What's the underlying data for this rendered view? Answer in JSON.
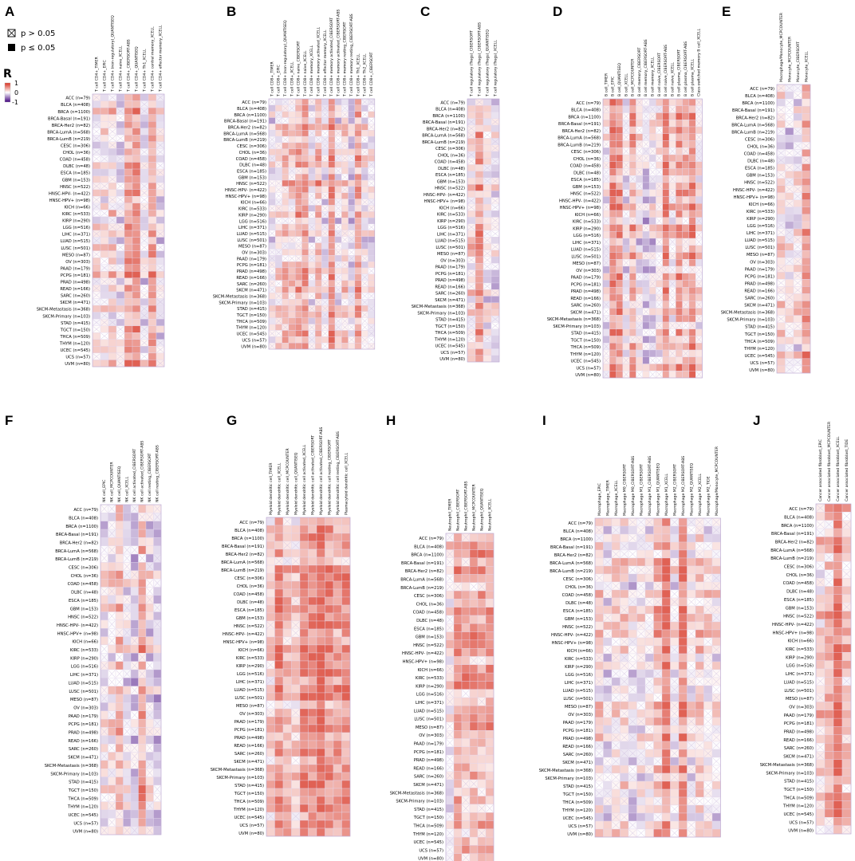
{
  "figure": {
    "description_free": true,
    "legend": {
      "ns_label": "p > 0.05",
      "sig_label": "p ≤ 0.05",
      "r_title": "R",
      "r_ticks": [
        "1",
        "0",
        "-1"
      ],
      "colors": {
        "positive": "#d7301f",
        "neutral": "#ffffff",
        "negative": "#3f007d",
        "grid": "#d8c8e8"
      }
    }
  },
  "chart_data": {
    "type": "heatmap",
    "value_range": [
      -1,
      1
    ],
    "cancers": [
      "ACC (n=79)",
      "BLCA (n=408)",
      "BRCA (n=1100)",
      "BRCA-Basal (n=191)",
      "BRCA-Her2 (n=82)",
      "BRCA-LumA (n=568)",
      "BRCA-LumB (n=219)",
      "CESC (n=306)",
      "CHOL (n=36)",
      "COAD (n=458)",
      "DLBC (n=48)",
      "ESCA (n=185)",
      "GBM (n=153)",
      "HNSC (n=522)",
      "HNSC-HPV- (n=422)",
      "HNSC-HPV+ (n=98)",
      "KICH (n=66)",
      "KIRC (n=533)",
      "KIRP (n=290)",
      "LGG (n=516)",
      "LIHC (n=371)",
      "LUAD (n=515)",
      "LUSC (n=501)",
      "MESO (n=87)",
      "OV (n=303)",
      "PAAD (n=179)",
      "PCPG (n=181)",
      "PRAD (n=498)",
      "READ (n=166)",
      "SARC (n=260)",
      "SKCM (n=471)",
      "SKCM-Metastasis (n=368)",
      "SKCM-Primary (n=103)",
      "STAD (n=415)",
      "TGCT (n=150)",
      "THCA (n=509)",
      "THYM (n=120)",
      "UCEC (n=545)",
      "UCS (n=57)",
      "UVM (n=80)"
    ],
    "panels": [
      {
        "letter": "A",
        "seed": 11,
        "bias": 0.3,
        "columns": [
          "T cell CD4+_TIMER",
          "T cell CD4+_EPIC",
          "T cell CD4+ (non-regulatory)_QUANTISEQ",
          "T cell CD4+ naive_XCELL",
          "T cell CD4+_CIBERSORT-ABS",
          "T cell CD4+_QUANTISEQ",
          "T cell CD4+ Th1_XCELL",
          "T cell CD4+ central memory_XCELL",
          "T cell CD4+ effector memory_XCELL"
        ]
      },
      {
        "letter": "B",
        "seed": 23,
        "bias": 0.18,
        "columns": [
          "T cell CD8+_TIMER",
          "T cell CD8+_EPIC",
          "T cell CD8+ (non-regulatory)_QUANTISEQ",
          "T cell CD8+_XCELL",
          "T cell CD8+ naive_CIBERSORT",
          "T cell CD8+ naive_XCELL",
          "T cell CD8+ memory_XCELL",
          "T cell CD8+ memory activated_XCELL",
          "T cell CD8+ effector memory_XCELL",
          "T cell CD8+ memory activated_CIBERSORT",
          "T cell CD8+ memory activated_CIBERSORT-ABS",
          "T cell CD8+ memory resting_CIBERSORT",
          "T cell CD8+ memory resting_CIBERSORT-ABS",
          "T cell CD8+ Th1_XCELL",
          "T cell CD8+ Th2_XCELL",
          "T cell CD8+_CIBERSORT"
        ]
      },
      {
        "letter": "C",
        "seed": 37,
        "bias": 0.35,
        "columns": [
          "T cell regulatory (Tregs)_CIBERSORT",
          "T cell regulatory (Tregs)_CIBERSORT-ABS",
          "T cell regulatory (Tregs)_QUANTISEQ",
          "T cell regulatory (Tregs)_XCELL"
        ]
      },
      {
        "letter": "D",
        "seed": 41,
        "bias": 0.1,
        "columns": [
          "B cell_TIMER",
          "B cell_EPIC",
          "B cell_QUANTISEQ",
          "B cell_XCELL",
          "B cell_MCPCOUNTER",
          "B cell memory_CIBERSORT",
          "B cell memory_CIBERSORT-ABS",
          "B cell memory_XCELL",
          "B cell naive_CIBERSORT",
          "B cell naive_CIBERSORT-ABS",
          "B cell naive_XCELL",
          "B cell plasma_CIBERSORT",
          "B cell plasma_CIBERSORT-ABS",
          "B cell plasma_XCELL",
          "Class-switched memory B cell_XCELL"
        ]
      },
      {
        "letter": "E",
        "seed": 53,
        "bias": 0.4,
        "columns": [
          "Macrophage/Monocyte_MCPCOUNTER",
          "Monocyte_MCPCOUNTER",
          "Monocyte_CIBERSORT",
          "Monocyte_XCELL"
        ]
      },
      {
        "letter": "F",
        "seed": 67,
        "bias": 0.15,
        "columns": [
          "NK cell_EPIC",
          "NK cell_MCPCOUNTER",
          "NK cell_QUANTISEQ",
          "NK cell_XCELL",
          "NK cell activated_CIBERSORT",
          "NK cell activated_CIBERSORT-ABS",
          "NK cell resting_CIBERSORT",
          "NK cell resting_CIBERSORT-ABS"
        ]
      },
      {
        "letter": "G",
        "seed": 71,
        "bias": 0.42,
        "columns": [
          "Myeloid dendritic cell_TIMER",
          "Myeloid dendritic cell_XCELL",
          "Myeloid dendritic cell_MCPCOUNTER",
          "Myeloid dendritic cell_QUANTISEQ",
          "Myeloid dendritic cell activated_XCELL",
          "Myeloid dendritic cell activated_CIBERSORT",
          "Myeloid dendritic cell activated_CIBERSORT-ABS",
          "Myeloid dendritic cell resting_CIBERSORT",
          "Myeloid dendritic cell resting_CIBERSORT-ABS",
          "Plasmacytoid dendritic cell_XCELL"
        ]
      },
      {
        "letter": "H",
        "seed": 83,
        "bias": 0.22,
        "columns": [
          "Neutrophil_TIMER",
          "Neutrophil_CIBERSORT",
          "Neutrophil_CIBERSORT-ABS",
          "Neutrophil_MCPCOUNTER",
          "Neutrophil_QUANTISEQ",
          "Neutrophil_XCELL"
        ]
      },
      {
        "letter": "I",
        "seed": 97,
        "bias": 0.38,
        "columns": [
          "Macrophage_EPIC",
          "Macrophage_TIMER",
          "Macrophage_XCELL",
          "Macrophage M0_CIBERSORT",
          "Macrophage M0_CIBERSORT-ABS",
          "Macrophage M1_CIBERSORT",
          "Macrophage M1_CIBERSORT-ABS",
          "Macrophage M1_QUANTISEQ",
          "Macrophage M1_XCELL",
          "Macrophage M2_CIBERSORT",
          "Macrophage M2_CIBERSORT-ABS",
          "Macrophage M2_QUANTISEQ",
          "Macrophage M2_XCELL",
          "Macrophage M2_TIDE",
          "Macrophage/Monocyte_MCPCOUNTER"
        ]
      },
      {
        "letter": "J",
        "seed": 101,
        "bias": 0.45,
        "columns": [
          "Cancer associated fibroblast_EPIC",
          "Cancer associated fibroblast_MCPCOUNTER",
          "Cancer associated fibroblast_XCELL",
          "Cancer associated fibroblast_TIDE"
        ]
      }
    ]
  }
}
